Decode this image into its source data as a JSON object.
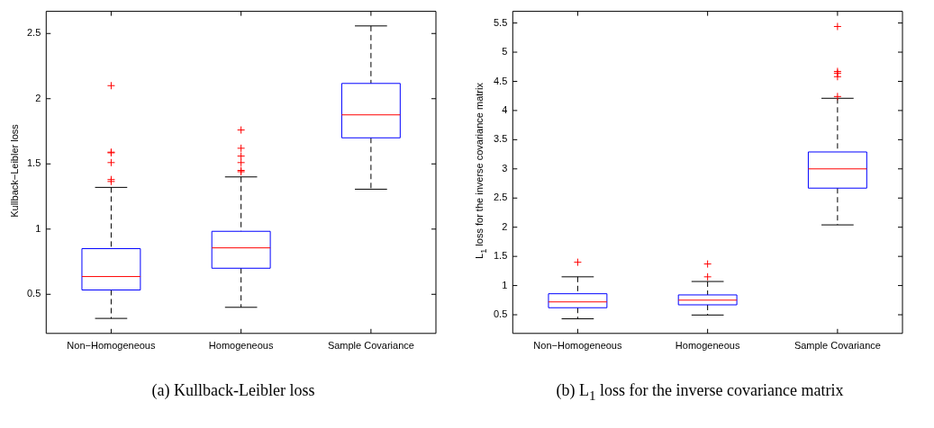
{
  "chart_data": [
    {
      "type": "box",
      "title": "(a) Kullback-Leibler loss",
      "ylabel": "Kullback−Leibler loss",
      "categories": [
        "Non−Homogeneous",
        "Homogeneous",
        "Sample Covariance"
      ],
      "color": "#0000ff",
      "marker": "cross",
      "grid": false,
      "ylim": [
        0.2,
        2.67
      ],
      "yticks": [
        0.5,
        1,
        1.5,
        2,
        2.5
      ],
      "boxes": [
        {
          "low": 0.315,
          "q1": 0.533,
          "median": 0.636,
          "q3": 0.85,
          "high": 1.32,
          "outliers": [
            2.1,
            1.59,
            1.585,
            1.51,
            1.38,
            1.365
          ]
        },
        {
          "low": 0.4,
          "q1": 0.7,
          "median": 0.856,
          "q3": 0.983,
          "high": 1.4,
          "outliers": [
            1.76,
            1.62,
            1.56,
            1.51,
            1.45,
            1.44
          ]
        },
        {
          "low": 1.306,
          "q1": 1.7,
          "median": 1.876,
          "q3": 2.117,
          "high": 2.558
        }
      ]
    },
    {
      "type": "box",
      "title": "(b) L$_{1}$ loss for the inverse covariance matrix",
      "ylabel": "L$_{1}$ loss for the inverse covariance matrix",
      "categories": [
        "Non−Homogeneous",
        "Homogeneous",
        "Sample Covariance"
      ],
      "color": "#0000ff",
      "marker": "cross",
      "grid": false,
      "ylim": [
        0.18,
        5.7
      ],
      "yticks": [
        0.5,
        1,
        1.5,
        2,
        2.5,
        3,
        3.5,
        4,
        4.5,
        5,
        5.5
      ],
      "boxes": [
        {
          "low": 0.43,
          "q1": 0.62,
          "median": 0.72,
          "q3": 0.86,
          "high": 1.15,
          "outliers": [
            1.4
          ]
        },
        {
          "low": 0.495,
          "q1": 0.67,
          "median": 0.75,
          "q3": 0.84,
          "high": 1.07,
          "outliers": [
            1.37,
            1.15
          ]
        },
        {
          "low": 2.04,
          "q1": 2.67,
          "median": 3.0,
          "q3": 3.29,
          "high": 4.21,
          "outliers": [
            5.44,
            4.67,
            4.64,
            4.58,
            4.24
          ]
        }
      ]
    }
  ]
}
